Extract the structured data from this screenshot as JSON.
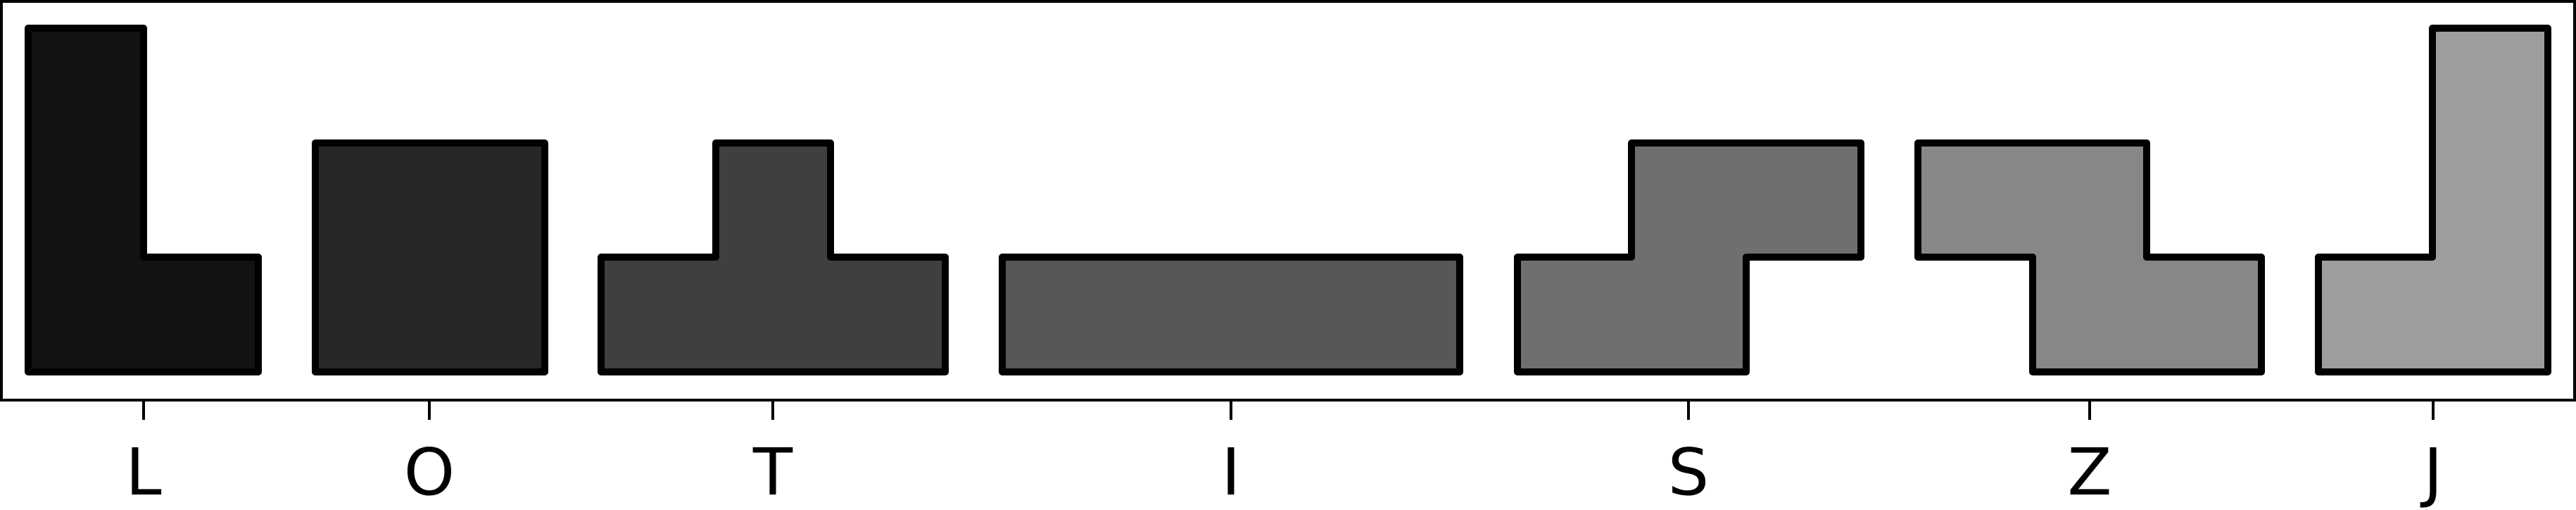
{
  "pieces": [
    {
      "label": "L",
      "fill": "#121212"
    },
    {
      "label": "O",
      "fill": "#272727"
    },
    {
      "label": "T",
      "fill": "#3f3f3f"
    },
    {
      "label": "I",
      "fill": "#575757"
    },
    {
      "label": "S",
      "fill": "#6f6f6f"
    },
    {
      "label": "Z",
      "fill": "#878787"
    },
    {
      "label": "J",
      "fill": "#9d9d9d"
    }
  ]
}
